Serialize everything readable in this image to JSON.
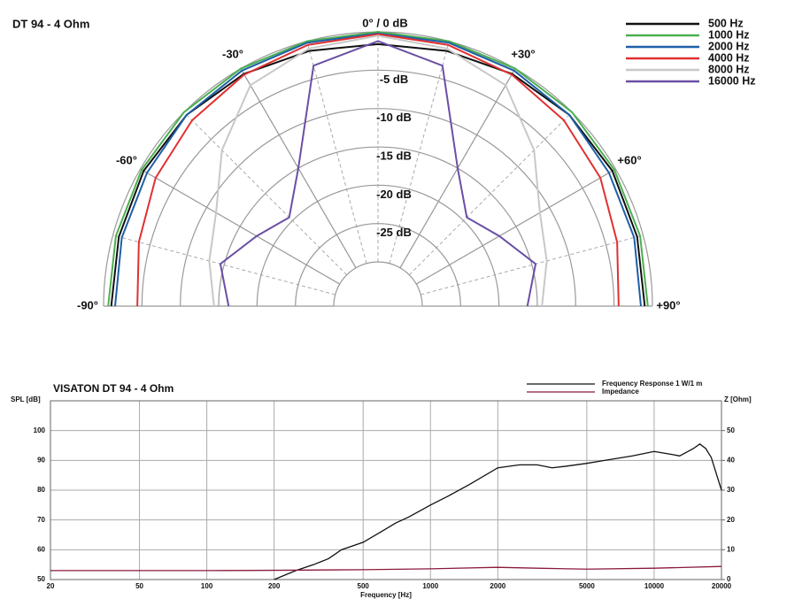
{
  "chart_data": [
    {
      "type": "polar",
      "title": "DT 94 - 4 Ohm",
      "top_label": "0° / 0 dB",
      "theta": [
        -90,
        -75,
        -60,
        -45,
        -30,
        -15,
        0,
        15,
        30,
        45,
        60,
        75,
        90
      ],
      "thetaticks": [
        {
          "value": -90,
          "label": "-90°"
        },
        {
          "value": -60,
          "label": "-60°"
        },
        {
          "value": -30,
          "label": "-30°"
        },
        {
          "value": 30,
          "label": "+30°"
        },
        {
          "value": 60,
          "label": "+60°"
        },
        {
          "value": 90,
          "label": "+90°"
        }
      ],
      "rlim": [
        -30,
        0
      ],
      "rticks": [
        {
          "value": -5,
          "label": "-5 dB"
        },
        {
          "value": -10,
          "label": "-10 dB"
        },
        {
          "value": -15,
          "label": "-15 dB"
        },
        {
          "value": -20,
          "label": "-20 dB"
        },
        {
          "value": -25,
          "label": "-25 dB"
        }
      ],
      "series": [
        {
          "name": "500 Hz",
          "color": "#111111",
          "values": [
            -1,
            -0.8,
            -0.5,
            -0.5,
            -0.8,
            -1.3,
            -1.6,
            -1.3,
            -0.8,
            -0.5,
            -0.5,
            -0.8,
            -1
          ]
        },
        {
          "name": "1000 Hz",
          "color": "#4caf50",
          "values": [
            -0.6,
            -0.4,
            -0.2,
            0,
            0,
            0,
            0,
            0,
            0,
            0,
            -0.2,
            -0.4,
            -0.6
          ]
        },
        {
          "name": "2000 Hz",
          "color": "#1f5fa8",
          "values": [
            -1.5,
            -1.2,
            -1,
            -0.5,
            -0.3,
            -0.2,
            -0.2,
            -0.2,
            -0.3,
            -0.5,
            -1,
            -1.2,
            -1.5
          ]
        },
        {
          "name": "4000 Hz",
          "color": "#e03030",
          "values": [
            -4.4,
            -3.5,
            -2.3,
            -1.5,
            -0.9,
            -0.5,
            -0.3,
            -0.5,
            -0.9,
            -1.5,
            -2.3,
            -3.5,
            -4.4
          ]
        },
        {
          "name": "8000 Hz",
          "color": "#c8c8c8",
          "values": [
            -14.4,
            -13,
            -11.4,
            -7,
            -2.5,
            -1,
            -0.5,
            -1,
            -2.5,
            -7,
            -11.4,
            -13,
            -14.4
          ]
        },
        {
          "name": "16000 Hz",
          "color": "#6a4fa5",
          "values": [
            -16.3,
            -14.5,
            -17.5,
            -19.4,
            -15,
            -3.3,
            -1.2,
            -3.3,
            -15,
            -19.4,
            -17.5,
            -14.5,
            -16.3
          ]
        }
      ]
    },
    {
      "type": "line",
      "title": "VISATON DT 94 - 4 Ohm",
      "x_label": "Frequency [Hz]",
      "y_label": "SPL [dB]",
      "y2_label": "Z [Ohm]",
      "log_x": true,
      "xlim": [
        20,
        20000
      ],
      "xticks": [
        20,
        50,
        100,
        200,
        500,
        1000,
        2000,
        5000,
        10000,
        20000
      ],
      "ylim": [
        50,
        110
      ],
      "yticks": [
        50,
        60,
        70,
        80,
        90,
        100
      ],
      "y2lim": [
        0,
        60
      ],
      "y2ticks": [
        0,
        10,
        20,
        30,
        40,
        50
      ],
      "series": [
        {
          "name": "Frequency Response 1 W/1 m",
          "color": "#111111",
          "x": [
            200,
            250,
            300,
            350,
            400,
            500,
            600,
            700,
            800,
            1000,
            1200,
            1500,
            2000,
            2500,
            3000,
            3500,
            4000,
            5000,
            6000,
            8000,
            10000,
            12000,
            13000,
            15000,
            16000,
            17000,
            18000,
            20000
          ],
          "values": [
            50,
            53,
            55,
            57,
            60,
            62.5,
            66,
            69,
            71,
            75,
            78,
            82,
            87.5,
            88.5,
            88.5,
            87.5,
            88,
            89,
            90,
            91.5,
            93,
            92,
            91.5,
            94,
            95.5,
            94,
            91,
            80
          ]
        },
        {
          "name": "Impedance",
          "color": "#8b1a3a",
          "axis": "y2",
          "x": [
            20,
            100,
            200,
            500,
            1000,
            2000,
            3000,
            5000,
            10000,
            20000
          ],
          "values": [
            3,
            3,
            3.1,
            3.3,
            3.6,
            4.1,
            3.8,
            3.5,
            3.8,
            4.4
          ]
        }
      ]
    }
  ]
}
